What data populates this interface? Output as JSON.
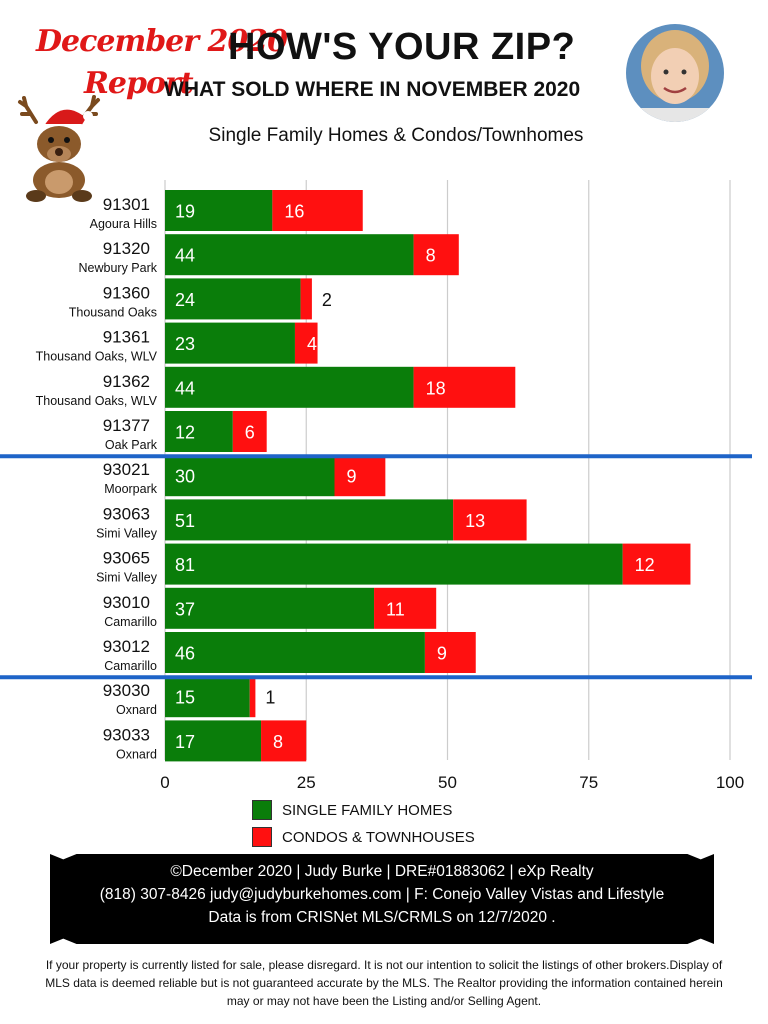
{
  "badge": {
    "line1": "December 2020",
    "line2": "Report"
  },
  "header": {
    "title": "HOW'S YOUR ZIP?",
    "subtitle": "WHAT SOLD WHERE IN NOVEMBER  2020",
    "caption": "Single Family Homes & Condos/Townhomes"
  },
  "colors": {
    "sfh": "#0a7d0a",
    "condo": "#ff1010",
    "divider": "#1e64c8",
    "grid": "#cccccc"
  },
  "chart_data": {
    "type": "bar",
    "orientation": "horizontal",
    "stacked": true,
    "categories": [
      "91301",
      "91320",
      "91360",
      "91361",
      "91362",
      "91377",
      "93021",
      "93063",
      "93065",
      "93010",
      "93012",
      "93030",
      "93033"
    ],
    "category_sublabels": [
      "Agoura Hills",
      "Newbury Park",
      "Thousand Oaks",
      "Thousand Oaks, WLV",
      "Thousand Oaks, WLV",
      "Oak Park",
      "Moorpark",
      "Simi Valley",
      "Simi Valley",
      "Camarillo",
      "Camarillo",
      "Oxnard",
      "Oxnard"
    ],
    "series": [
      {
        "name": "SINGLE FAMILY HOMES",
        "values": [
          19,
          44,
          24,
          23,
          44,
          12,
          30,
          51,
          81,
          37,
          46,
          15,
          17
        ]
      },
      {
        "name": "CONDOS & TOWNHOUSES",
        "values": [
          16,
          8,
          2,
          4,
          18,
          6,
          9,
          13,
          12,
          11,
          9,
          1,
          8
        ]
      }
    ],
    "xlim": [
      0,
      100
    ],
    "xticks": [
      "0",
      "25",
      "50",
      "75",
      "100"
    ],
    "grid": true,
    "group_dividers_after": [
      "91377",
      "93012"
    ],
    "legend_position": "bottom"
  },
  "footer": {
    "line1": "©December 2020  |  Judy Burke  |  DRE#01883062  |  eXp Realty",
    "line2": "(818) 307-8426  judy@judyburkehomes.com | F: Conejo Valley Vistas and Lifestyle",
    "line3": "Data is from CRISNet MLS/CRMLS on 12/7/2020 ."
  },
  "disclaimer": "If your property is currently listed for sale, please disregard. It is not our intention to solicit the listings of other brokers.Display of MLS data is deemed reliable but is not guaranteed accurate by the MLS. The Realtor providing the information contained herein may or may not have been the Listing and/or Selling Agent."
}
